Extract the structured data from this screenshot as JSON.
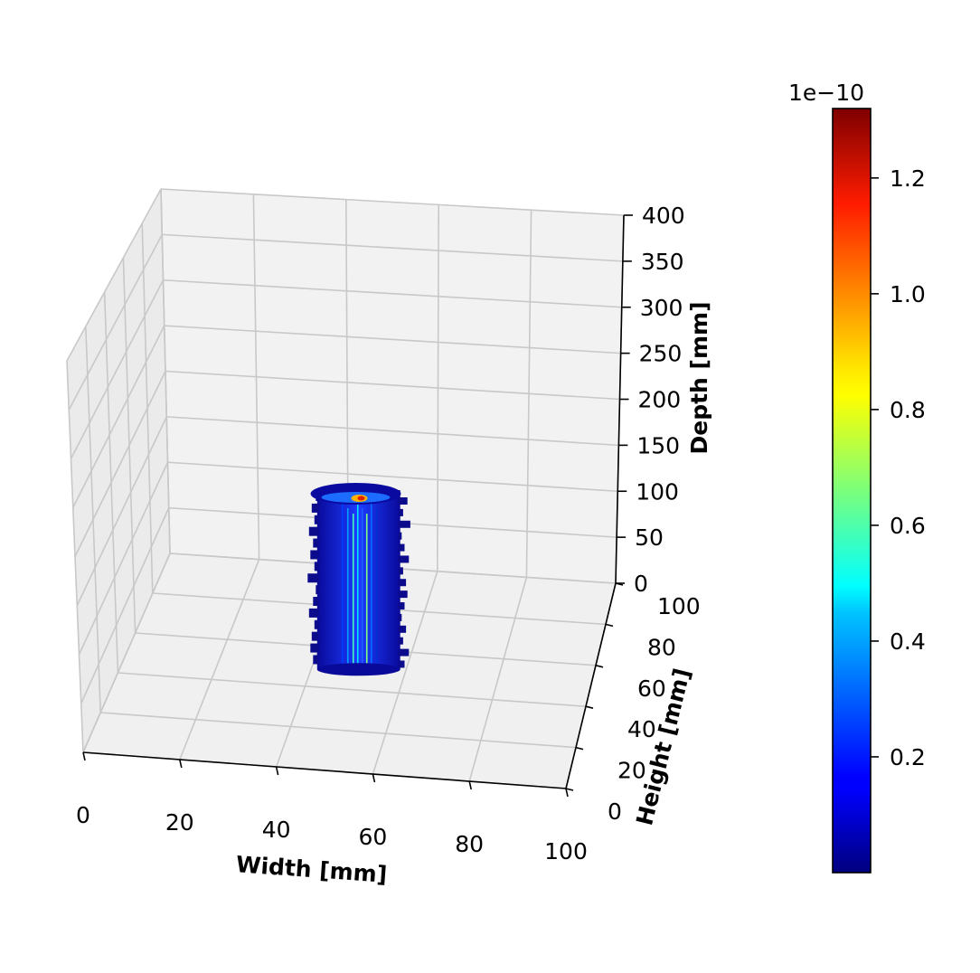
{
  "chart_data": {
    "type": "scatter3d",
    "title": "",
    "axes": {
      "x": {
        "label": "Width [mm]",
        "lim": [
          0,
          100
        ],
        "ticks": [
          0,
          20,
          40,
          60,
          80,
          100
        ]
      },
      "y": {
        "label": "Height [mm]",
        "lim": [
          0,
          100
        ],
        "ticks": [
          0,
          20,
          40,
          60,
          80,
          100
        ]
      },
      "z": {
        "label": "Depth [mm]",
        "lim": [
          0,
          400
        ],
        "ticks": [
          0,
          50,
          100,
          150,
          200,
          250,
          300,
          350,
          400
        ]
      }
    },
    "grid": true,
    "view": {
      "elev": 20,
      "azim": -80
    },
    "object": {
      "shape": "vertical column of voxels",
      "x_center": 50,
      "y_center": 50,
      "radius": 7,
      "z_range": [
        0,
        200
      ],
      "peak_value_near_top": 1.3
    },
    "colorbar": {
      "colormap": "jet",
      "offset_label": "1e−10",
      "range": [
        0.0,
        1.32
      ],
      "ticks": [
        0.2,
        0.4,
        0.6,
        0.8,
        1.0,
        1.2
      ],
      "tick_labels": [
        "0.2",
        "0.4",
        "0.6",
        "0.8",
        "1.0",
        "1.2"
      ],
      "placement": "right"
    }
  }
}
